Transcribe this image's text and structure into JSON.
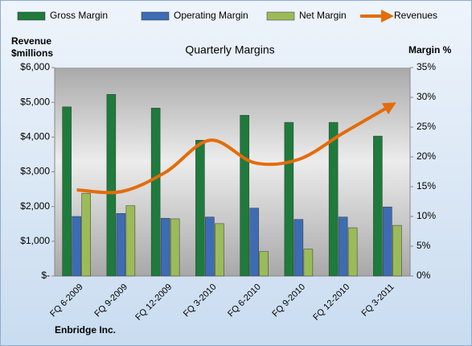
{
  "chart_data": {
    "type": "bar",
    "title": "Quarterly Margins",
    "ylabel_lines": [
      "Revenue",
      "$millions"
    ],
    "y2label": "Margin %",
    "source": "Enbridge Inc.",
    "categories": [
      "FQ 6-2009",
      "FQ 9-2009",
      "FQ 12-2009",
      "FQ 3-2010",
      "FQ 6-2010",
      "FQ 9-2010",
      "FQ 12-2010",
      "FQ 3-2011"
    ],
    "series": [
      {
        "name": "Gross Margin",
        "color": "#1e7b3c",
        "axis": "y2",
        "values": [
          28.4,
          30.5,
          28.2,
          22.8,
          27,
          25.8,
          25.8,
          23.5
        ]
      },
      {
        "name": "Operating Margin",
        "color": "#3d6cb3",
        "axis": "y2",
        "values": [
          10,
          10.5,
          9.7,
          9.9,
          11.4,
          9.5,
          9.9,
          11.6
        ]
      },
      {
        "name": "Net Margin",
        "color": "#9bbb59",
        "axis": "y2",
        "values": [
          13.9,
          11.8,
          9.6,
          8.8,
          4.1,
          4.5,
          8.1,
          8.5
        ]
      },
      {
        "name": "Revenues",
        "color": "#e46c0a",
        "type": "line",
        "values": [
          2480,
          2430,
          2990,
          3910,
          3260,
          3360,
          4120,
          4860
        ]
      }
    ],
    "ylim": [
      0,
      6000
    ],
    "yticks": [
      {
        "value": 0,
        "label": "$-"
      },
      {
        "value": 1000,
        "label": "$1,000"
      },
      {
        "value": 2000,
        "label": "$2,000"
      },
      {
        "value": 3000,
        "label": "$3,000"
      },
      {
        "value": 4000,
        "label": "$4,000"
      },
      {
        "value": 5000,
        "label": "$5,000"
      },
      {
        "value": 6000,
        "label": "$6,000"
      }
    ],
    "y2lim": [
      0,
      35
    ],
    "y2ticks": [
      {
        "value": 0,
        "label": "0%"
      },
      {
        "value": 5,
        "label": "5%"
      },
      {
        "value": 10,
        "label": "10%"
      },
      {
        "value": 15,
        "label": "15%"
      },
      {
        "value": 20,
        "label": "20%"
      },
      {
        "value": 25,
        "label": "25%"
      },
      {
        "value": 30,
        "label": "30%"
      },
      {
        "value": 35,
        "label": "35%"
      }
    ],
    "legend": "top"
  }
}
